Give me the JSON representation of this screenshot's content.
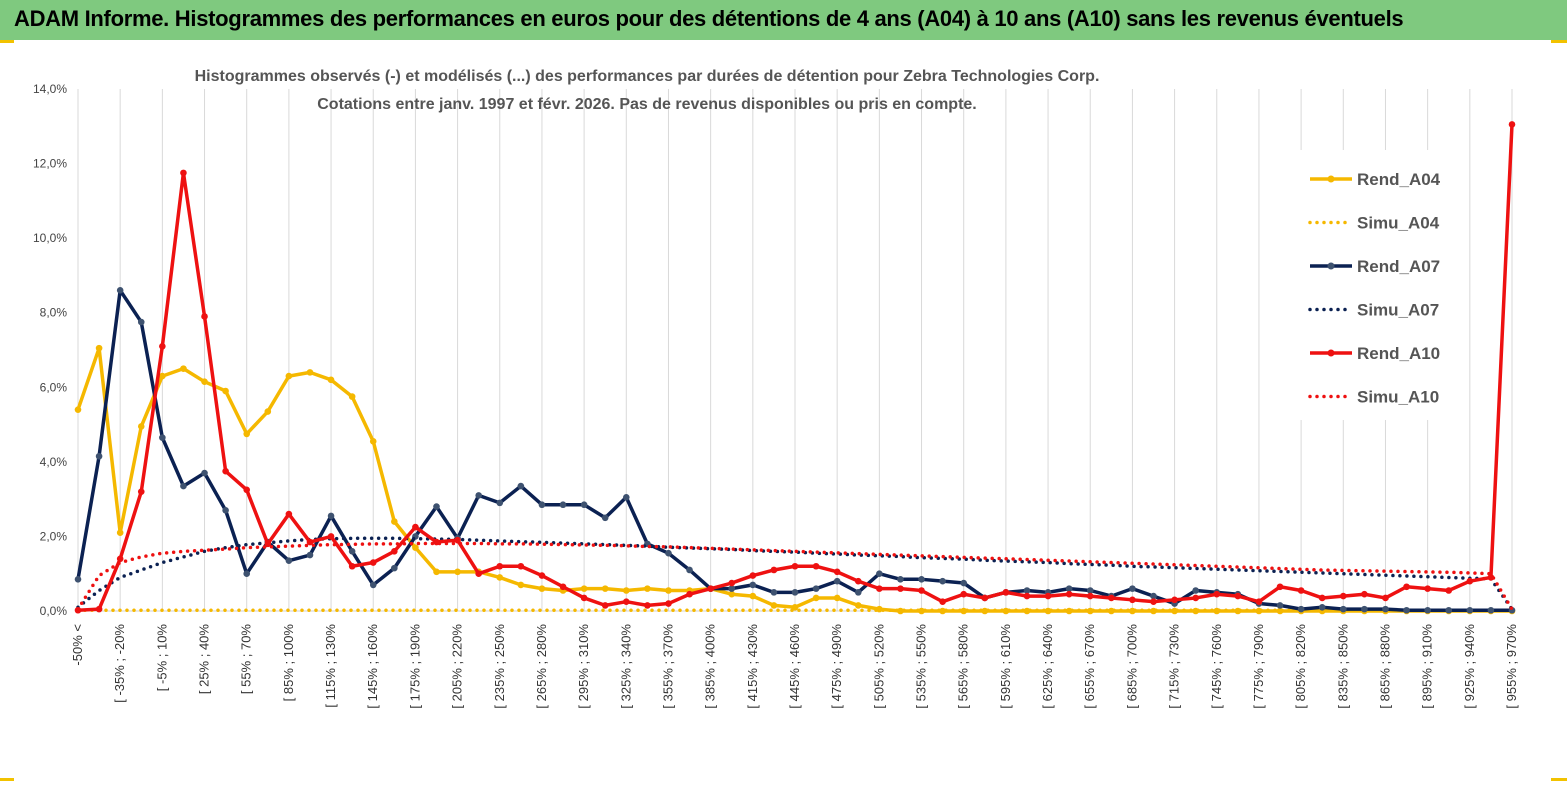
{
  "header": {
    "title": "ADAM Informe. Histogrammes des performances en euros pour des détentions de 4 ans (A04) à 10 ans (A10) sans les revenus éventuels"
  },
  "chart_data": {
    "type": "line",
    "title": "Histogrammes observés (-) et modélisés (...) des performances par durées de détention pour Zebra Technologies Corp.",
    "subtitle": "Cotations entre janv. 1997 et févr. 2026. Pas de revenus disponibles ou pris en compte.",
    "xlabel": "",
    "ylabel": "",
    "ylim": [
      0,
      14
    ],
    "y_ticks": [
      "0,0%",
      "2,0%",
      "4,0%",
      "6,0%",
      "8,0%",
      "10,0%",
      "12,0%",
      "14,0%"
    ],
    "grid": "vertical",
    "legend_position": "right",
    "x_tick_labels": [
      "-50% <",
      "[ -35% ; -20%",
      "[ -5% ; 10%",
      "[ 25% ; 40%",
      "[ 55% ; 70%",
      "[ 85% ; 100%",
      "[ 115% ; 130%",
      "[ 145% ; 160%",
      "[ 175% ; 190%",
      "[ 205% ; 220%",
      "[ 235% ; 250%",
      "[ 265% ; 280%",
      "[ 295% ; 310%",
      "[ 325% ; 340%",
      "[ 355% ; 370%",
      "[ 385% ; 400%",
      "[ 415% ; 430%",
      "[ 445% ; 460%",
      "[ 475% ; 490%",
      "[ 505% ; 520%",
      "[ 535% ; 550%",
      "[ 565% ; 580%",
      "[ 595% ; 610%",
      "[ 625% ; 640%",
      "[ 655% ; 670%",
      "[ 685% ; 700%",
      "[ 715% ; 730%",
      "[ 745% ; 760%",
      "[ 775% ; 790%",
      "[ 805% ; 820%",
      "[ 835% ; 850%",
      "[ 865% ; 880%",
      "[ 895% ; 910%",
      "[ 925% ; 940%",
      "[ 955% ; 970%"
    ],
    "n_points": 69,
    "series": [
      {
        "name": "Rend_A04",
        "color": "#f5b800",
        "style": "solid",
        "values": [
          5.4,
          7.05,
          2.1,
          4.95,
          6.3,
          6.5,
          6.15,
          5.9,
          4.75,
          5.35,
          6.3,
          6.4,
          6.2,
          5.75,
          4.55,
          2.4,
          1.7,
          1.05,
          1.05,
          1.05,
          0.9,
          0.7,
          0.6,
          0.55,
          0.6,
          0.6,
          0.55,
          0.6,
          0.55,
          0.55,
          0.6,
          0.45,
          0.4,
          0.15,
          0.1,
          0.35,
          0.35,
          0.15,
          0.05,
          0,
          0,
          0,
          0,
          0,
          0,
          0,
          0,
          0,
          0,
          0,
          0,
          0,
          0,
          0,
          0,
          0,
          0,
          0,
          0,
          0,
          0,
          0,
          0,
          0,
          0,
          0,
          0,
          0,
          0
        ]
      },
      {
        "name": "Simu_A04",
        "color": "#f5b800",
        "style": "dotted",
        "values": [
          0.02,
          0.02,
          0.02,
          0.02,
          0.02,
          0.02,
          0.02,
          0.02,
          0.02,
          0.02,
          0.02,
          0.02,
          0.02,
          0.02,
          0.02,
          0.02,
          0.02,
          0.02,
          0.02,
          0.02,
          0.02,
          0.02,
          0.02,
          0.02,
          0.02,
          0.02,
          0.02,
          0.02,
          0.02,
          0.02,
          0.02,
          0.02,
          0.02,
          0.02,
          0.02,
          0.02,
          0.02,
          0.02,
          0.02,
          0.02,
          0.02,
          0.02,
          0.02,
          0.02,
          0.02,
          0.02,
          0.02,
          0.02,
          0.02,
          0.02,
          0.02,
          0.02,
          0.02,
          0.02,
          0.02,
          0.02,
          0.02,
          0.02,
          0.02,
          0.02,
          0.02,
          0.02,
          0.02,
          0.02,
          0.02,
          0.02,
          0.02,
          0.02,
          0.02
        ]
      },
      {
        "name": "Rend_A07",
        "color": "#0b2152",
        "style": "solid",
        "values": [
          0.85,
          4.15,
          8.6,
          7.75,
          4.65,
          3.35,
          3.7,
          2.7,
          1.0,
          1.85,
          1.35,
          1.5,
          2.55,
          1.6,
          0.7,
          1.15,
          2.0,
          2.8,
          1.95,
          3.1,
          2.9,
          3.35,
          2.85,
          2.85,
          2.85,
          2.5,
          3.05,
          1.8,
          1.55,
          1.1,
          0.6,
          0.6,
          0.7,
          0.5,
          0.5,
          0.6,
          0.8,
          0.5,
          1.0,
          0.85,
          0.85,
          0.8,
          0.75,
          0.35,
          0.5,
          0.55,
          0.5,
          0.6,
          0.55,
          0.4,
          0.6,
          0.4,
          0.2,
          0.55,
          0.5,
          0.45,
          0.2,
          0.15,
          0.05,
          0.1,
          0.05,
          0.05,
          0.05,
          0.02,
          0.02,
          0.02,
          0.02,
          0.02,
          0.02
        ]
      },
      {
        "name": "Simu_A07",
        "color": "#0b2152",
        "style": "dotted",
        "values": [
          0.1,
          0.55,
          0.9,
          1.1,
          1.3,
          1.45,
          1.6,
          1.7,
          1.78,
          1.83,
          1.88,
          1.92,
          1.94,
          1.95,
          1.95,
          1.95,
          1.94,
          1.93,
          1.92,
          1.9,
          1.88,
          1.86,
          1.84,
          1.82,
          1.8,
          1.78,
          1.76,
          1.74,
          1.71,
          1.69,
          1.67,
          1.65,
          1.62,
          1.6,
          1.58,
          1.55,
          1.53,
          1.5,
          1.48,
          1.46,
          1.43,
          1.41,
          1.39,
          1.36,
          1.34,
          1.32,
          1.3,
          1.27,
          1.25,
          1.23,
          1.2,
          1.18,
          1.16,
          1.14,
          1.12,
          1.1,
          1.08,
          1.06,
          1.04,
          1.02,
          1.0,
          0.98,
          0.96,
          0.94,
          0.92,
          0.9,
          0.88,
          0.86,
          0.05
        ]
      },
      {
        "name": "Rend_A10",
        "color": "#ee1111",
        "style": "solid",
        "values": [
          0.02,
          0.05,
          1.4,
          3.2,
          7.1,
          11.75,
          7.9,
          3.75,
          3.25,
          1.8,
          2.6,
          1.85,
          2.0,
          1.2,
          1.3,
          1.6,
          2.25,
          1.85,
          1.9,
          1.0,
          1.2,
          1.2,
          0.95,
          0.65,
          0.35,
          0.15,
          0.25,
          0.15,
          0.2,
          0.45,
          0.6,
          0.75,
          0.95,
          1.1,
          1.2,
          1.2,
          1.05,
          0.8,
          0.6,
          0.6,
          0.55,
          0.25,
          0.45,
          0.35,
          0.5,
          0.4,
          0.4,
          0.45,
          0.4,
          0.35,
          0.3,
          0.25,
          0.3,
          0.35,
          0.45,
          0.4,
          0.25,
          0.65,
          0.55,
          0.35,
          0.4,
          0.45,
          0.35,
          0.65,
          0.6,
          0.55,
          0.8,
          0.9,
          13.05
        ]
      },
      {
        "name": "Simu_A10",
        "color": "#ee1111",
        "style": "dotted",
        "values": [
          0.05,
          0.95,
          1.3,
          1.45,
          1.55,
          1.6,
          1.63,
          1.66,
          1.7,
          1.72,
          1.74,
          1.76,
          1.78,
          1.79,
          1.8,
          1.8,
          1.81,
          1.81,
          1.81,
          1.81,
          1.8,
          1.8,
          1.79,
          1.78,
          1.77,
          1.76,
          1.75,
          1.73,
          1.72,
          1.7,
          1.68,
          1.66,
          1.64,
          1.62,
          1.6,
          1.58,
          1.56,
          1.54,
          1.52,
          1.5,
          1.48,
          1.46,
          1.44,
          1.42,
          1.4,
          1.38,
          1.36,
          1.34,
          1.32,
          1.3,
          1.28,
          1.26,
          1.24,
          1.22,
          1.2,
          1.18,
          1.16,
          1.14,
          1.12,
          1.1,
          1.09,
          1.08,
          1.07,
          1.06,
          1.05,
          1.04,
          1.02,
          1.0,
          0.05
        ]
      }
    ]
  }
}
